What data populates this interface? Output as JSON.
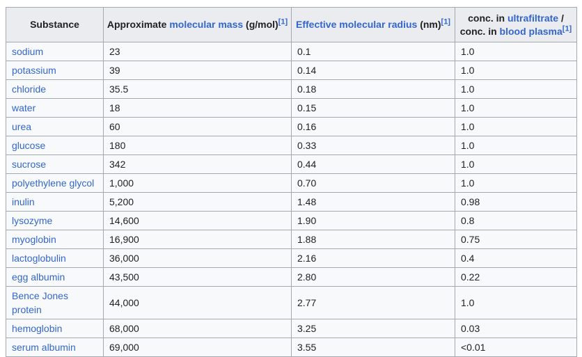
{
  "colors": {
    "link_blue": "#3366cc",
    "header_background": "#eaecf0",
    "cell_background": "#f8f9fa",
    "border": "#a2a9b1",
    "text": "#202122",
    "page_background": "#ffffff"
  },
  "table": {
    "headers": {
      "substance": "Substance",
      "mass_prefix": "Approximate ",
      "mass_link": "molecular mass",
      "mass_suffix": " (g/mol)",
      "mass_ref": "[1]",
      "radius_link": "Effective molecular radius",
      "radius_suffix": " (nm)",
      "radius_ref": "[1]",
      "conc_line1_prefix": "conc. in ",
      "conc_line1_link": "ultrafiltrate",
      "conc_line1_suffix": " /",
      "conc_line2_prefix": "conc. in ",
      "conc_line2_link": "blood plasma",
      "conc_ref": "[1]"
    },
    "rows": [
      {
        "substance": "sodium",
        "mass": "23",
        "radius": "0.1",
        "conc": "1.0"
      },
      {
        "substance": "potassium",
        "mass": "39",
        "radius": "0.14",
        "conc": "1.0"
      },
      {
        "substance": "chloride",
        "mass": "35.5",
        "radius": "0.18",
        "conc": "1.0"
      },
      {
        "substance": "water",
        "mass": "18",
        "radius": "0.15",
        "conc": "1.0"
      },
      {
        "substance": "urea",
        "mass": "60",
        "radius": "0.16",
        "conc": "1.0"
      },
      {
        "substance": "glucose",
        "mass": "180",
        "radius": "0.33",
        "conc": "1.0"
      },
      {
        "substance": "sucrose",
        "mass": "342",
        "radius": "0.44",
        "conc": "1.0"
      },
      {
        "substance": "polyethylene glycol",
        "mass": "1,000",
        "radius": "0.70",
        "conc": "1.0"
      },
      {
        "substance": "inulin",
        "mass": "5,200",
        "radius": "1.48",
        "conc": "0.98"
      },
      {
        "substance": "lysozyme",
        "mass": "14,600",
        "radius": "1.90",
        "conc": "0.8"
      },
      {
        "substance": "myoglobin",
        "mass": "16,900",
        "radius": "1.88",
        "conc": "0.75"
      },
      {
        "substance": "lactoglobulin",
        "mass": "36,000",
        "radius": "2.16",
        "conc": "0.4"
      },
      {
        "substance": "egg albumin",
        "mass": "43,500",
        "radius": "2.80",
        "conc": "0.22"
      },
      {
        "substance": "Bence Jones protein",
        "mass": "44,000",
        "radius": "2.77",
        "conc": "1.0"
      },
      {
        "substance": "hemoglobin",
        "mass": "68,000",
        "radius": "3.25",
        "conc": "0.03"
      },
      {
        "substance": "serum albumin",
        "mass": "69,000",
        "radius": "3.55",
        "conc": "<0.01"
      }
    ]
  }
}
